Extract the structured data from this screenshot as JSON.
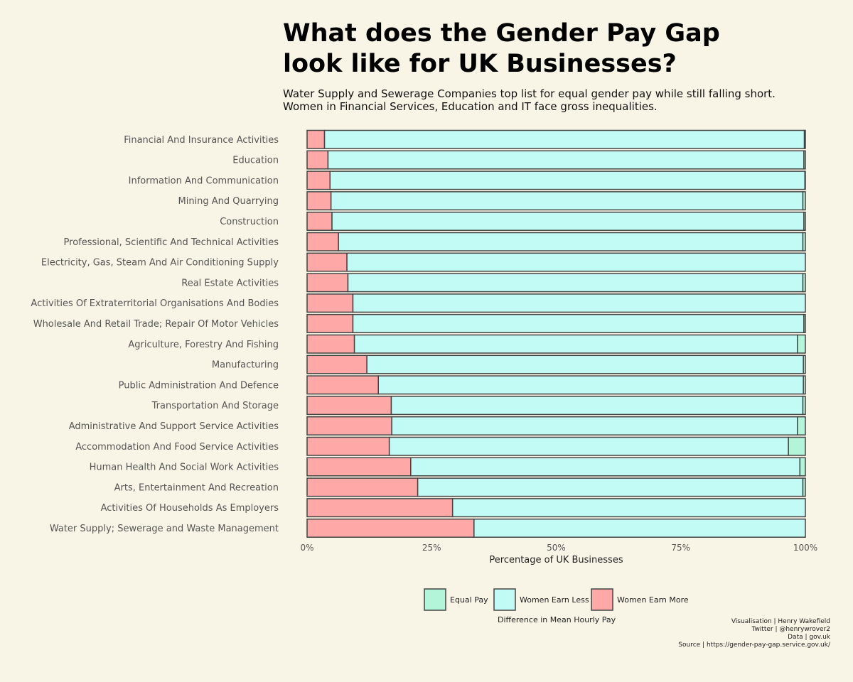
{
  "title": "What does the Gender Pay Gap look like for UK Businesses?",
  "subtitle": "Water Supply and Sewerage Companies top list for equal gender pay while still falling short. Women in Financial Services, Education and IT face gross inequalities.",
  "colors": {
    "women_earn_more": "#ffa8a8",
    "women_earn_less": "#c2faf5",
    "equal_pay": "#b2f5d9",
    "stroke": "#444444",
    "background": "#f8f4e6"
  },
  "chart_data": {
    "type": "bar",
    "orientation": "horizontal",
    "stacked": true,
    "xlabel": "Percentage of UK Businesses",
    "xlim": [
      0,
      100
    ],
    "x_ticks": [
      "0%",
      "25%",
      "50%",
      "75%",
      "100%"
    ],
    "grid": false,
    "legend_position": "bottom",
    "legend_title": "Difference in Mean Hourly Pay",
    "categories": [
      "Financial And Insurance Activities",
      "Education",
      "Information And Communication",
      "Mining And Quarrying",
      "Construction",
      "Professional, Scientific And Technical Activities",
      "Electricity, Gas, Steam And Air Conditioning Supply",
      "Real Estate Activities",
      "Activities Of Extraterritorial Organisations And Bodies",
      "Wholesale And Retail Trade; Repair Of Motor Vehicles",
      "Agriculture, Forestry And Fishing",
      "Manufacturing",
      "Public Administration And Defence",
      "Transportation And Storage",
      "Administrative And Support Service Activities",
      "Accommodation And Food Service Activities",
      "Human Health And Social Work Activities",
      "Arts, Entertainment And Recreation",
      "Activities Of Households As Employers",
      "Water Supply; Sewerage and Waste Management"
    ],
    "series": [
      {
        "name": "Women Earn More",
        "values": [
          3.5,
          4.2,
          4.6,
          4.8,
          5.0,
          6.3,
          8.0,
          8.2,
          9.2,
          9.2,
          9.5,
          12.0,
          14.3,
          16.9,
          17.0,
          16.5,
          20.8,
          22.2,
          29.2,
          33.5
        ]
      },
      {
        "name": "Women Earn Less",
        "values": [
          96.3,
          95.5,
          95.3,
          94.7,
          94.7,
          93.2,
          92.0,
          91.3,
          90.8,
          90.5,
          88.9,
          87.6,
          85.3,
          82.6,
          81.4,
          80.1,
          78.1,
          77.3,
          70.8,
          66.5
        ]
      },
      {
        "name": "Equal Pay",
        "values": [
          0.2,
          0.3,
          0.1,
          0.5,
          0.3,
          0.5,
          0.0,
          0.5,
          0.0,
          0.3,
          1.6,
          0.4,
          0.4,
          0.5,
          1.6,
          3.4,
          1.1,
          0.5,
          0.0,
          0.0
        ]
      }
    ],
    "legend_items": [
      {
        "name": "Equal Pay",
        "color_key": "equal_pay"
      },
      {
        "name": "Women Earn Less",
        "color_key": "women_earn_less"
      },
      {
        "name": "Women Earn More",
        "color_key": "women_earn_more"
      }
    ]
  },
  "credits": [
    "Visualisation | Henry Wakefield",
    "Twitter | @henrywrover2",
    "Data | gov.uk",
    "Source | https://gender-pay-gap.service.gov.uk/"
  ]
}
